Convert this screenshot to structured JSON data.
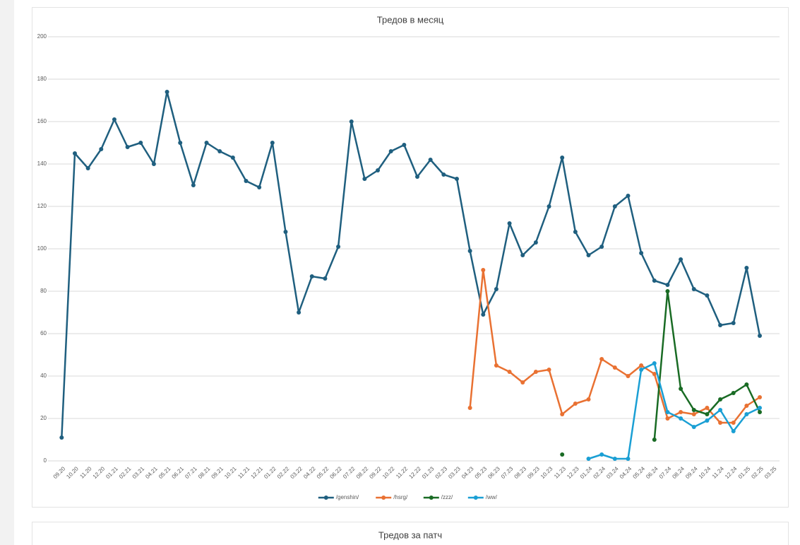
{
  "chart_data": [
    {
      "type": "line",
      "title": "Тредов в месяц",
      "categories": [
        "09.20",
        "10.20",
        "11.20",
        "12.20",
        "01.21",
        "02.21",
        "03.21",
        "04.21",
        "05.21",
        "06.21",
        "07.21",
        "08.21",
        "09.21",
        "10.21",
        "11.21",
        "12.21",
        "01.22",
        "02.22",
        "03.22",
        "04.22",
        "05.22",
        "06.22",
        "07.22",
        "08.22",
        "09.22",
        "10.22",
        "11.22",
        "12.22",
        "01.23",
        "02.23",
        "03.23",
        "04.23",
        "05.23",
        "06.23",
        "07.23",
        "08.23",
        "09.23",
        "10.23",
        "11.23",
        "12.23",
        "01.24",
        "02.24",
        "03.24",
        "04.24",
        "05.24",
        "06.24",
        "07.24",
        "08.24",
        "09.24",
        "10.24",
        "11.24",
        "12.24",
        "01.25",
        "02.25",
        "03.25"
      ],
      "series": [
        {
          "name": "/genshin/",
          "color": "#1f5f7f",
          "values": [
            11,
            145,
            138,
            147,
            161,
            148,
            150,
            140,
            174,
            150,
            130,
            150,
            146,
            143,
            132,
            129,
            150,
            108,
            70,
            87,
            86,
            101,
            160,
            133,
            137,
            146,
            149,
            134,
            142,
            135,
            133,
            99,
            69,
            81,
            112,
            97,
            103,
            120,
            143,
            108,
            97,
            101,
            120,
            125,
            98,
            85,
            83,
            95,
            81,
            78,
            64,
            65,
            91,
            59,
            null
          ]
        },
        {
          "name": "/hsrg/",
          "color": "#e97132",
          "values": [
            null,
            null,
            null,
            null,
            null,
            null,
            null,
            null,
            null,
            null,
            null,
            null,
            null,
            null,
            null,
            null,
            null,
            null,
            null,
            null,
            null,
            null,
            null,
            null,
            null,
            null,
            null,
            null,
            null,
            null,
            null,
            25,
            90,
            45,
            42,
            37,
            42,
            43,
            22,
            27,
            29,
            48,
            44,
            40,
            45,
            41,
            20,
            23,
            22,
            25,
            18,
            18,
            26,
            30,
            null
          ]
        },
        {
          "name": "/zzz/",
          "color": "#196b24",
          "values": [
            null,
            null,
            null,
            null,
            null,
            null,
            null,
            null,
            null,
            null,
            null,
            null,
            null,
            null,
            null,
            null,
            null,
            null,
            null,
            null,
            null,
            null,
            null,
            null,
            null,
            null,
            null,
            null,
            null,
            null,
            null,
            null,
            null,
            null,
            null,
            null,
            null,
            null,
            3,
            null,
            null,
            null,
            null,
            null,
            null,
            10,
            80,
            34,
            24,
            22,
            29,
            32,
            36,
            23,
            null
          ]
        },
        {
          "name": "/ww/",
          "color": "#1a9fd4",
          "values": [
            null,
            null,
            null,
            null,
            null,
            null,
            null,
            null,
            null,
            null,
            null,
            null,
            null,
            null,
            null,
            null,
            null,
            null,
            null,
            null,
            null,
            null,
            null,
            null,
            null,
            null,
            null,
            null,
            null,
            null,
            null,
            null,
            null,
            null,
            null,
            null,
            null,
            null,
            null,
            null,
            1,
            3,
            1,
            1,
            43,
            46,
            23,
            20,
            16,
            19,
            24,
            14,
            22,
            25,
            null
          ]
        }
      ],
      "ylim": [
        0,
        200
      ],
      "yticks": [
        0,
        20,
        40,
        60,
        80,
        100,
        120,
        140,
        160,
        180,
        200
      ],
      "grid": true,
      "legend": "bottom"
    },
    {
      "type": "line",
      "title": "Тредов за патч"
    }
  ]
}
